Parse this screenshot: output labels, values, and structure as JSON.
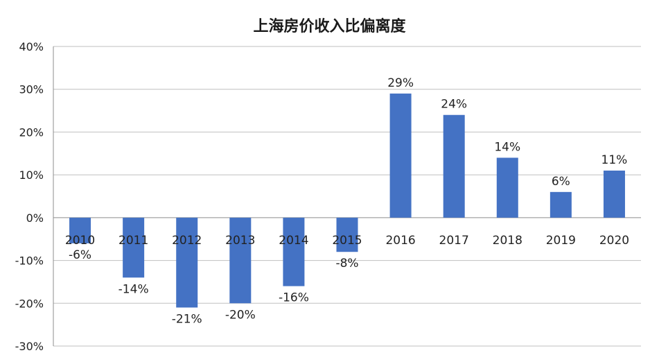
{
  "chart_data": {
    "type": "bar",
    "title": "上海房价收入比偏离度",
    "xlabel": "",
    "ylabel": "",
    "categories": [
      "2010",
      "2011",
      "2012",
      "2013",
      "2014",
      "2015",
      "2016",
      "2017",
      "2018",
      "2019",
      "2020"
    ],
    "values": [
      -6,
      -14,
      -21,
      -20,
      -16,
      -8,
      29,
      24,
      14,
      6,
      11
    ],
    "data_labels": [
      "-6%",
      "-14%",
      "-21%",
      "-20%",
      "-16%",
      "-8%",
      "29%",
      "24%",
      "14%",
      "6%",
      "11%"
    ],
    "ylim": [
      -30,
      40
    ],
    "yticks": [
      40,
      30,
      20,
      10,
      0,
      -10,
      -20,
      -30
    ],
    "ytick_labels": [
      "40%",
      "30%",
      "20%",
      "10%",
      "0%",
      "-10%",
      "-20%",
      "-30%"
    ],
    "grid": true,
    "legend": false,
    "bar_color": "#4472C4"
  }
}
